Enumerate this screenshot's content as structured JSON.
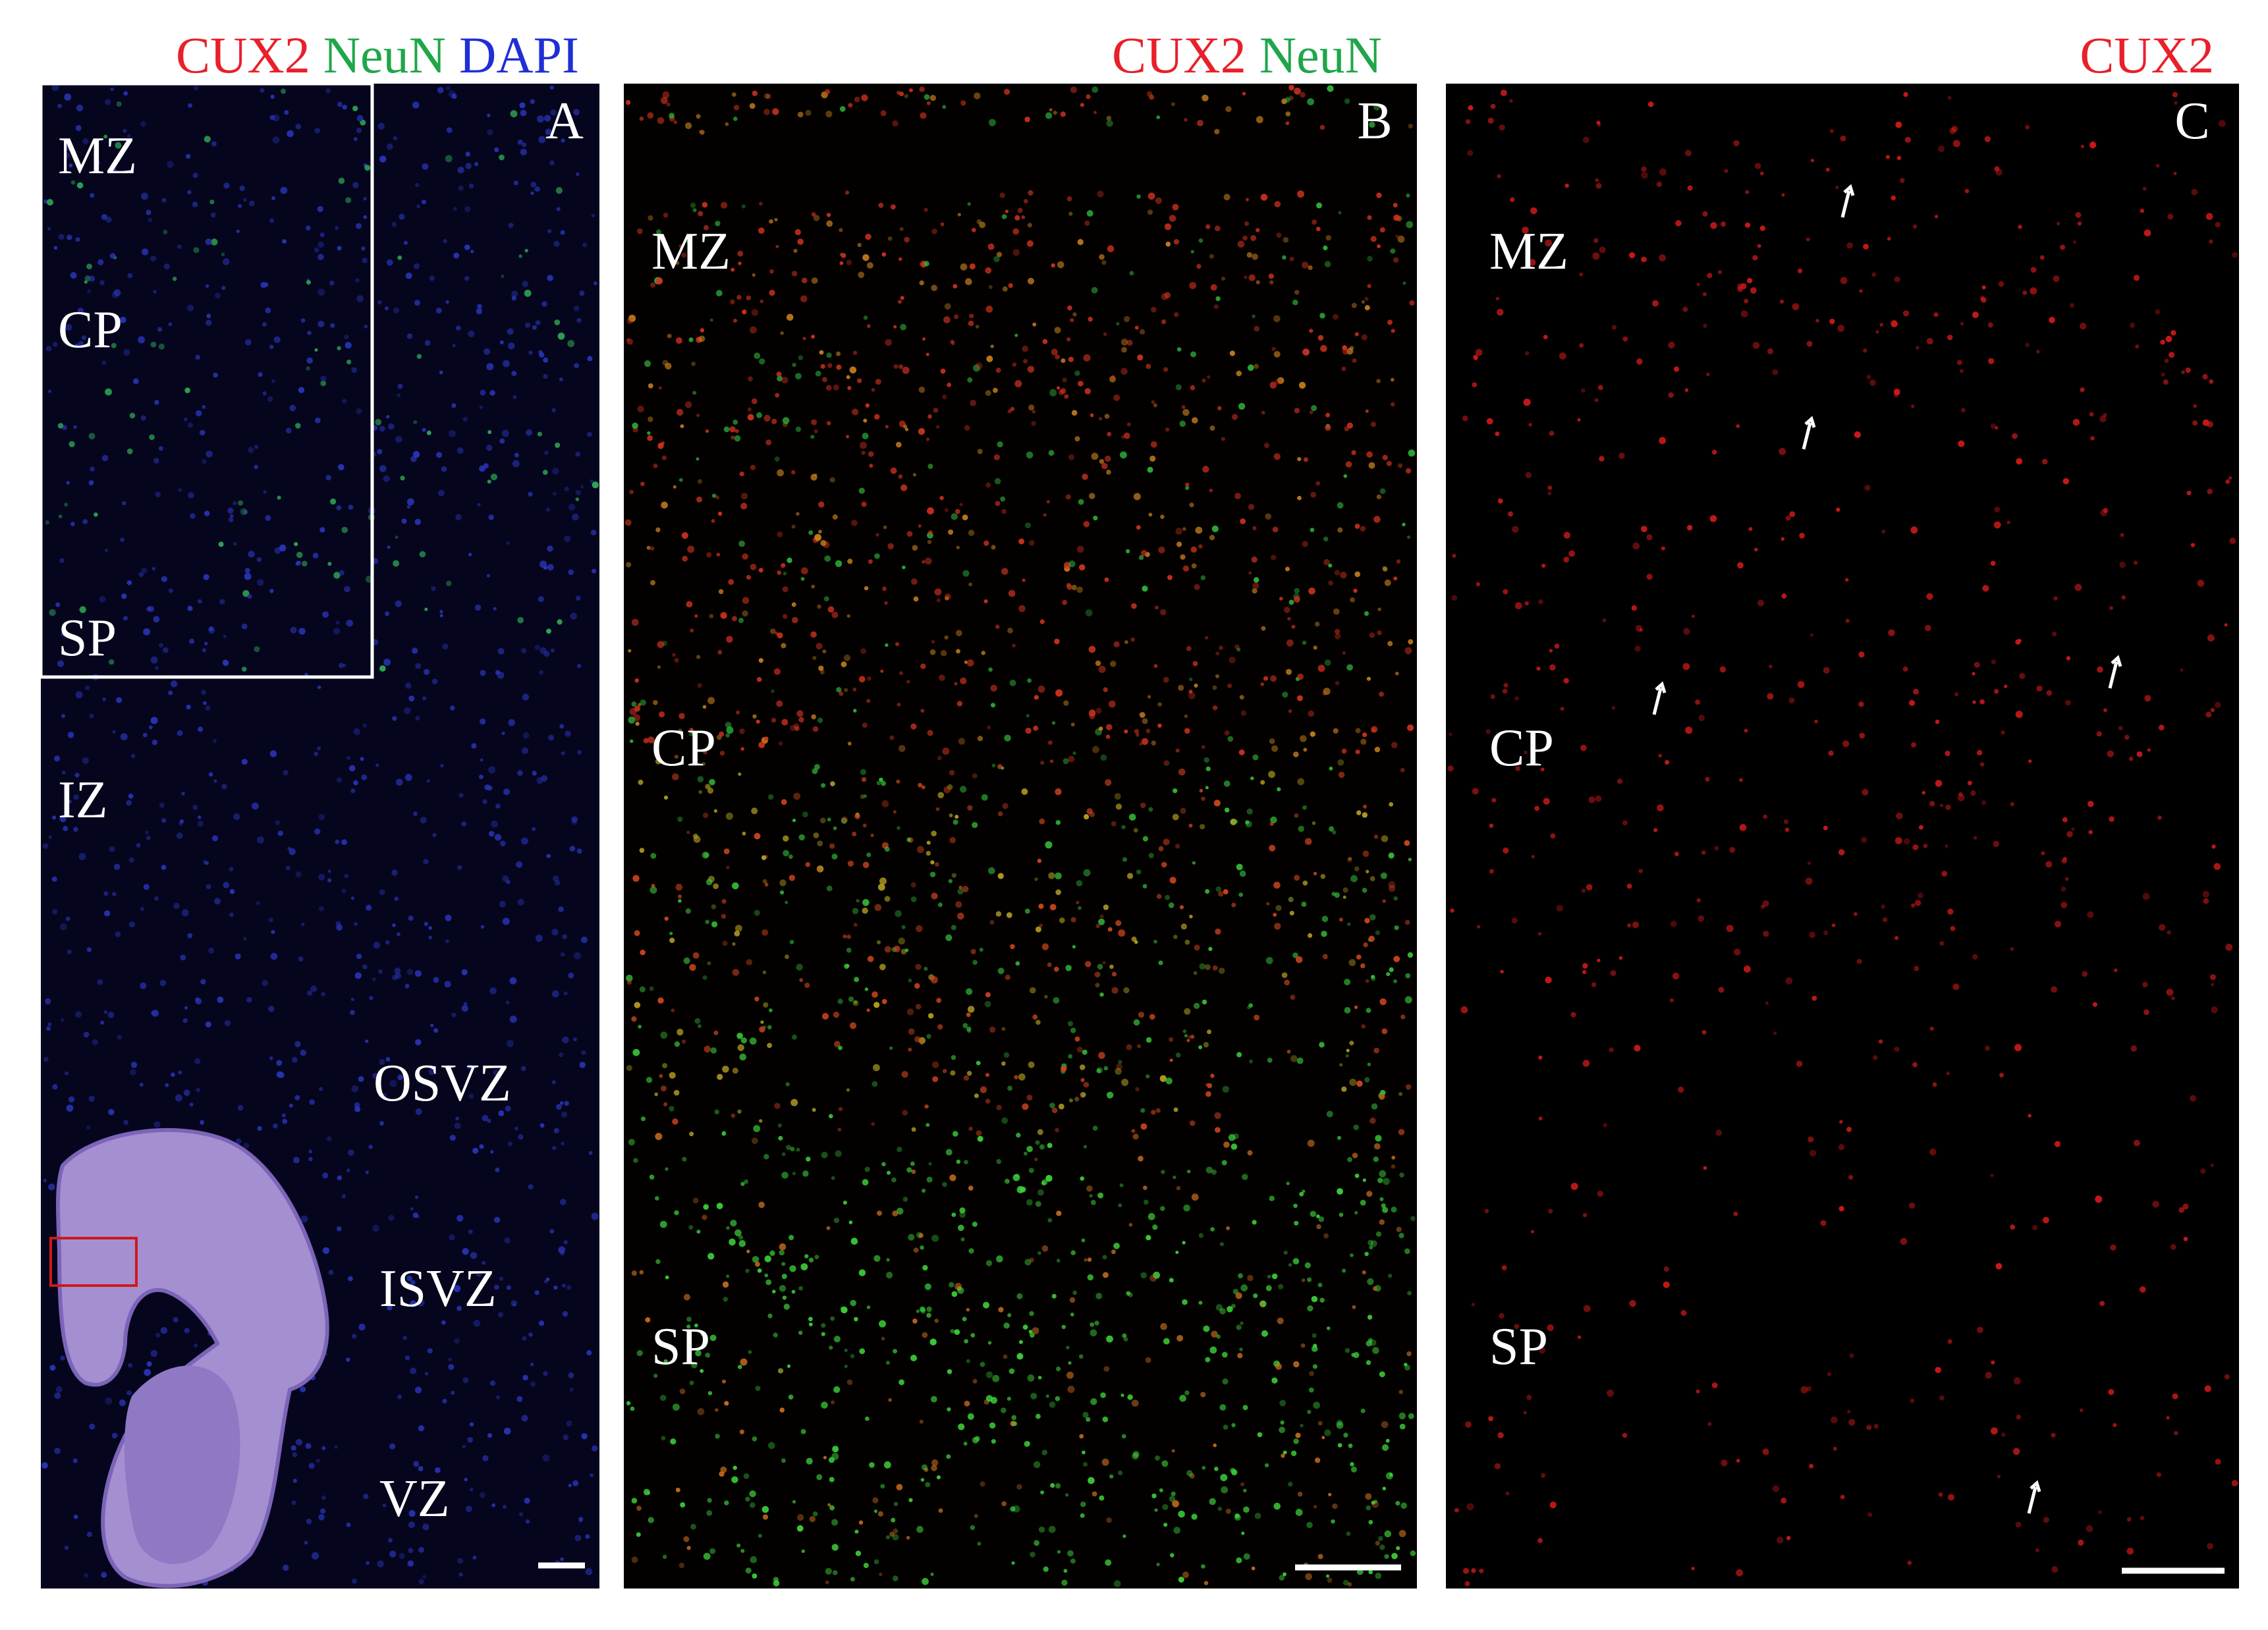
{
  "panels": [
    {
      "letter": "A",
      "stain": [
        {
          "text": "CUX2",
          "color": "#e8202a"
        },
        {
          "text": "NeuN",
          "color": "#1fa64a"
        },
        {
          "text": "DAPI",
          "color": "#1f2fd6"
        }
      ],
      "zones": [
        "MZ",
        "CP",
        "SP",
        "IZ",
        "OSVZ",
        "ISVZ",
        "VZ"
      ]
    },
    {
      "letter": "B",
      "stain": [
        {
          "text": "CUX2",
          "color": "#e8202a"
        },
        {
          "text": "NeuN",
          "color": "#1fa64a"
        }
      ],
      "zones": [
        "MZ",
        "CP",
        "SP"
      ]
    },
    {
      "letter": "C",
      "stain": [
        {
          "text": "CUX2",
          "color": "#e8202a"
        }
      ],
      "zones": [
        "MZ",
        "CP",
        "SP"
      ]
    }
  ]
}
